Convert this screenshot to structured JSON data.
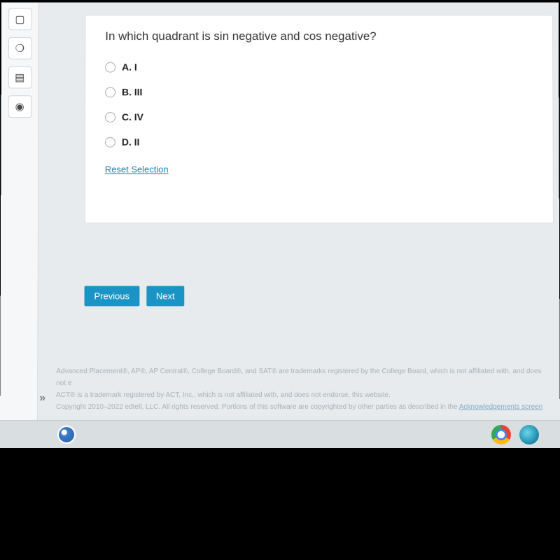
{
  "sidebar": {
    "items": [
      {
        "icon": "▢"
      },
      {
        "icon": "❍"
      },
      {
        "icon": "▤"
      },
      {
        "icon": "◉"
      }
    ]
  },
  "question": {
    "text": "In which quadrant is sin negative and cos negative?",
    "options": [
      {
        "label": "A. I"
      },
      {
        "label": "B. III"
      },
      {
        "label": "C. IV"
      },
      {
        "label": "D. II"
      }
    ],
    "reset_label": "Reset Selection"
  },
  "nav": {
    "previous": "Previous",
    "next": "Next"
  },
  "footer": {
    "line1": "Advanced Placement®, AP®, AP Central®, College Board®, and SAT® are trademarks registered by the College Board, which is not affiliated with, and does not e",
    "line2": "ACT® is a trademark registered by ACT, Inc., which is not affiliated with, and does not endorse, this website.",
    "line3_a": "Copyright 2010–2022 edtell, LLC. All rights reserved. Portions of this software are copyrighted by other parties as described in the ",
    "line3_link": "Acknowledgements screen"
  },
  "colors": {
    "button_bg": "#1a94c4",
    "link": "#1b7fb5",
    "page_bg": "#e8ebed",
    "card_bg": "#ffffff"
  }
}
